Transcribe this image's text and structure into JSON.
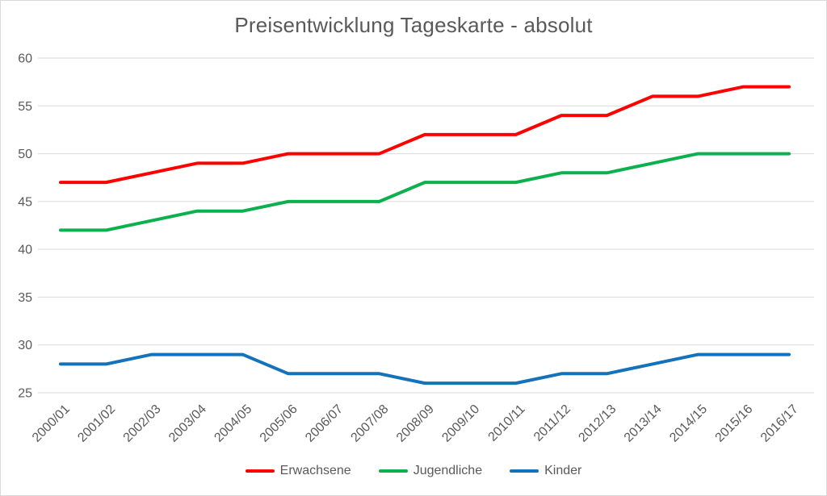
{
  "page": {
    "background": "#ffffff",
    "border_color": "#d9d9d9"
  },
  "chart_data": {
    "type": "line",
    "title": "Preisentwicklung Tageskarte - absolut",
    "categories": [
      "2000/01",
      "2001/02",
      "2002/03",
      "2003/04",
      "2004/05",
      "2005/06",
      "2006/07",
      "2007/08",
      "2008/09",
      "2009/10",
      "2010/11",
      "2011/12",
      "2012/13",
      "2013/14",
      "2014/15",
      "2015/16",
      "2016/17"
    ],
    "series": [
      {
        "name": "Erwachsene",
        "color": "#fe0000",
        "values": [
          47,
          47,
          48,
          49,
          49,
          50,
          50,
          50,
          52,
          52,
          52,
          54,
          54,
          56,
          56,
          57,
          57
        ]
      },
      {
        "name": "Jugendliche",
        "color": "#0cb04c",
        "values": [
          42,
          42,
          43,
          44,
          44,
          45,
          45,
          45,
          47,
          47,
          47,
          48,
          48,
          49,
          50,
          50,
          50
        ]
      },
      {
        "name": "Kinder",
        "color": "#1472ba",
        "values": [
          28,
          28,
          29,
          29,
          29,
          27,
          27,
          27,
          26,
          26,
          26,
          27,
          27,
          28,
          29,
          29,
          29
        ]
      }
    ],
    "ylim": [
      25,
      60
    ],
    "yticks": [
      25,
      30,
      35,
      40,
      45,
      50,
      55,
      60
    ],
    "grid": true,
    "legend_position": "bottom",
    "xlabel": "",
    "ylabel": "",
    "text_color": "#595959",
    "grid_color": "#d9d9d9"
  }
}
